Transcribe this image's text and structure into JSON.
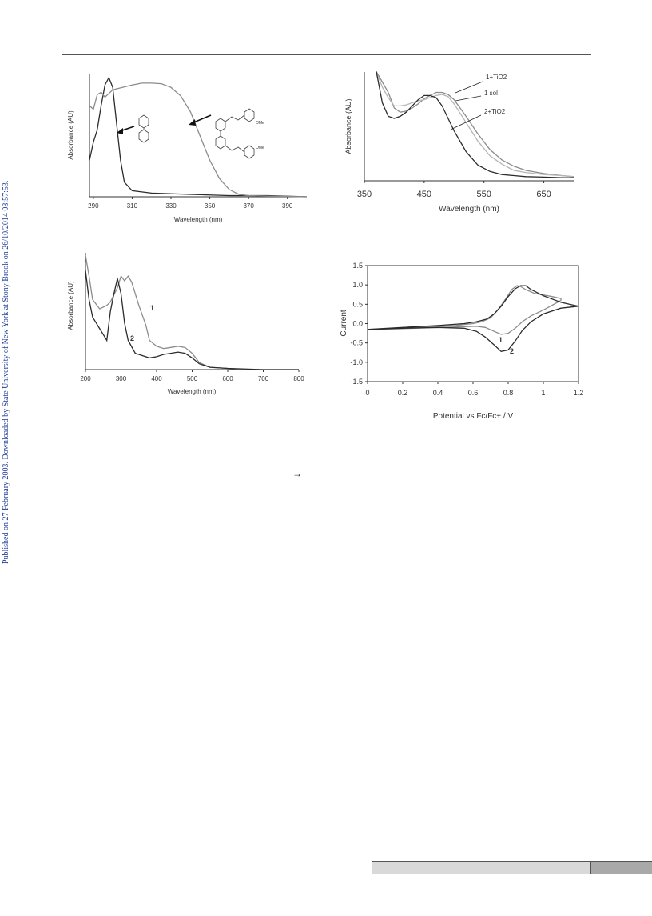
{
  "side_note": "Published on 27 February 2003. Downloaded by State University of New York at Stony Brook on 26/10/2014 08:57:53.",
  "arrow_glyph": "→",
  "colors": {
    "dark": "#2b2b2b",
    "gray": "#8c8c8c",
    "light": "#b5b5b5"
  },
  "chart_data": [
    {
      "type": "line",
      "xlabel": "Wavelength (nm)",
      "ylabel": "Absorbance (AU)",
      "xlim": [
        288,
        400
      ],
      "ylim": [
        0,
        1
      ],
      "xticks": [
        290,
        310,
        330,
        350,
        370,
        390
      ],
      "series": [
        {
          "x": [
            288,
            290,
            292,
            294,
            296,
            298,
            300,
            302,
            304,
            306,
            310,
            320,
            340,
            360,
            380,
            400
          ],
          "y": [
            0.3,
            0.45,
            0.55,
            0.75,
            0.92,
            0.98,
            0.9,
            0.6,
            0.3,
            0.12,
            0.05,
            0.03,
            0.02,
            0.01,
            0.01,
            0.0
          ]
        },
        {
          "x": [
            288,
            290,
            292,
            294,
            296,
            298,
            300,
            305,
            310,
            315,
            320,
            325,
            330,
            335,
            340,
            345,
            350,
            355,
            360,
            365,
            370,
            380,
            390,
            400
          ],
          "y": [
            0.75,
            0.72,
            0.84,
            0.86,
            0.82,
            0.85,
            0.88,
            0.9,
            0.92,
            0.935,
            0.935,
            0.93,
            0.9,
            0.83,
            0.7,
            0.5,
            0.3,
            0.15,
            0.06,
            0.02,
            0.01,
            0.005,
            0.003,
            0.0
          ]
        }
      ],
      "annotations": [
        "bpy",
        "substituted bpy OMe"
      ],
      "structure_labels": [
        "OMe",
        "OMe"
      ]
    },
    {
      "type": "line",
      "xlabel": "Wavelength (nm)",
      "ylabel": "Absorbance (AU)",
      "xlim": [
        350,
        700
      ],
      "ylim": [
        0,
        1
      ],
      "xticks": [
        350,
        450,
        550,
        650
      ],
      "series": [
        {
          "name": "1+TiO2",
          "x": [
            370,
            380,
            390,
            400,
            410,
            420,
            430,
            440,
            450,
            460,
            470,
            480,
            490,
            500,
            520,
            540,
            560,
            580,
            600,
            620,
            650,
            680,
            700
          ],
          "y": [
            1.05,
            0.95,
            0.85,
            0.7,
            0.66,
            0.67,
            0.7,
            0.74,
            0.79,
            0.82,
            0.85,
            0.85,
            0.83,
            0.78,
            0.62,
            0.45,
            0.3,
            0.2,
            0.14,
            0.1,
            0.07,
            0.05,
            0.04
          ]
        },
        {
          "name": "1 sol",
          "x": [
            370,
            380,
            390,
            400,
            410,
            420,
            430,
            440,
            450,
            460,
            470,
            480,
            490,
            500,
            520,
            540,
            560,
            580,
            600,
            620,
            650,
            680,
            700
          ],
          "y": [
            1.05,
            0.9,
            0.8,
            0.72,
            0.72,
            0.73,
            0.75,
            0.77,
            0.78,
            0.8,
            0.82,
            0.83,
            0.81,
            0.74,
            0.56,
            0.38,
            0.24,
            0.16,
            0.1,
            0.08,
            0.06,
            0.05,
            0.04
          ]
        },
        {
          "name": "2+TiO2",
          "x": [
            370,
            380,
            390,
            400,
            410,
            420,
            430,
            440,
            450,
            460,
            470,
            480,
            490,
            500,
            520,
            540,
            560,
            580,
            600,
            620,
            650,
            680,
            700
          ],
          "y": [
            1.05,
            0.75,
            0.62,
            0.6,
            0.62,
            0.66,
            0.72,
            0.78,
            0.82,
            0.82,
            0.8,
            0.72,
            0.6,
            0.48,
            0.28,
            0.15,
            0.09,
            0.06,
            0.05,
            0.04,
            0.035,
            0.03,
            0.03
          ]
        }
      ]
    },
    {
      "type": "line",
      "xlabel": "Wavelength (nm)",
      "ylabel": "Absorbance (AU)",
      "xlim": [
        200,
        800
      ],
      "ylim": [
        0,
        1
      ],
      "xticks": [
        200,
        300,
        400,
        500,
        600,
        700,
        800
      ],
      "series": [
        {
          "name": "1",
          "x": [
            200,
            210,
            220,
            240,
            260,
            270,
            290,
            300,
            310,
            320,
            330,
            350,
            370,
            380,
            400,
            420,
            440,
            460,
            480,
            500,
            520,
            550,
            600,
            650,
            700,
            750,
            800
          ],
          "y": [
            0.98,
            0.8,
            0.6,
            0.52,
            0.55,
            0.58,
            0.7,
            0.8,
            0.76,
            0.8,
            0.75,
            0.55,
            0.38,
            0.25,
            0.2,
            0.18,
            0.19,
            0.2,
            0.19,
            0.14,
            0.06,
            0.02,
            0.01,
            0.0,
            0.0,
            0.0,
            0.0
          ]
        },
        {
          "name": "2",
          "x": [
            200,
            210,
            220,
            240,
            250,
            260,
            270,
            280,
            290,
            300,
            310,
            320,
            340,
            360,
            380,
            400,
            420,
            440,
            460,
            480,
            500,
            520,
            550,
            600,
            700,
            800
          ],
          "y": [
            0.85,
            0.6,
            0.45,
            0.35,
            0.3,
            0.25,
            0.5,
            0.65,
            0.78,
            0.65,
            0.4,
            0.25,
            0.14,
            0.12,
            0.1,
            0.11,
            0.13,
            0.14,
            0.15,
            0.14,
            0.1,
            0.05,
            0.02,
            0.01,
            0.0,
            0.0
          ]
        }
      ]
    },
    {
      "type": "line",
      "xlabel": "Potential vs Fc/Fc+ / V",
      "ylabel": "Current",
      "xlim": [
        0,
        1.2
      ],
      "ylim": [
        -1.5,
        1.5
      ],
      "xticks": [
        0,
        0.2,
        0.4,
        0.6,
        0.8,
        1,
        1.2
      ],
      "yticks": [
        -1.5,
        -1.0,
        -0.5,
        0.0,
        0.5,
        1.0,
        1.5
      ],
      "series": [
        {
          "name": "1",
          "x": [
            0,
            0.2,
            0.4,
            0.55,
            0.62,
            0.67,
            0.72,
            0.76,
            0.8,
            0.84,
            0.88,
            0.93,
            1.0,
            1.1,
            1.1,
            1.05,
            0.95,
            0.9,
            0.87,
            0.85,
            0.82,
            0.78,
            0.74,
            0.7,
            0.65,
            0.6,
            0.5,
            0.3,
            0.1,
            0
          ],
          "y": [
            -0.15,
            -0.13,
            -0.1,
            -0.08,
            -0.07,
            -0.1,
            -0.2,
            -0.28,
            -0.25,
            -0.12,
            0.05,
            0.2,
            0.35,
            0.6,
            0.65,
            0.7,
            0.78,
            0.88,
            0.96,
            0.98,
            0.88,
            0.6,
            0.35,
            0.15,
            0.05,
            0.0,
            -0.05,
            -0.09,
            -0.13,
            -0.15
          ]
        },
        {
          "name": "2",
          "x": [
            0,
            0.2,
            0.4,
            0.55,
            0.62,
            0.67,
            0.72,
            0.76,
            0.8,
            0.84,
            0.88,
            0.93,
            1.0,
            1.1,
            1.2,
            1.1,
            1.0,
            0.93,
            0.9,
            0.87,
            0.84,
            0.8,
            0.76,
            0.72,
            0.68,
            0.62,
            0.55,
            0.4,
            0.2,
            0
          ],
          "y": [
            -0.15,
            -0.12,
            -0.1,
            -0.12,
            -0.2,
            -0.35,
            -0.55,
            -0.72,
            -0.68,
            -0.45,
            -0.18,
            0.05,
            0.25,
            0.4,
            0.45,
            0.55,
            0.72,
            0.88,
            0.98,
            0.98,
            0.9,
            0.7,
            0.45,
            0.25,
            0.12,
            0.05,
            0.0,
            -0.05,
            -0.1,
            -0.15
          ]
        }
      ]
    }
  ]
}
